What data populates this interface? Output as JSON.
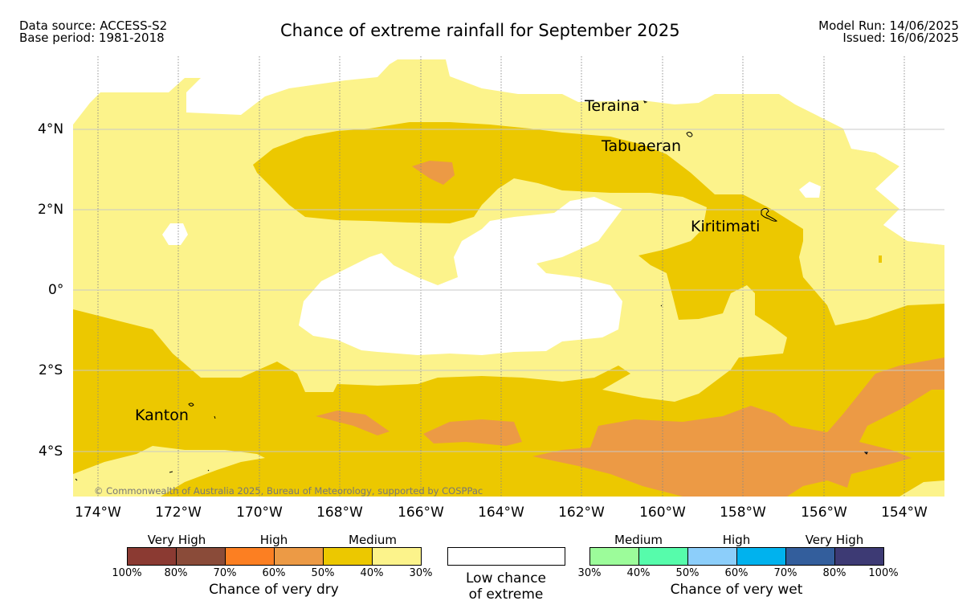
{
  "header": {
    "data_source": "Data source: ACCESS-S2",
    "base_period": "Base period: 1981-2018",
    "title": "Chance of extreme rainfall for September 2025",
    "model_run": "Model Run: 14/06/2025",
    "issued": "Issued: 16/06/2025"
  },
  "map": {
    "lat_labels": [
      "4°N",
      "2°N",
      "0°",
      "2°S",
      "4°S"
    ],
    "lon_labels": [
      "174°W",
      "172°W",
      "170°W",
      "168°W",
      "166°W",
      "164°W",
      "162°W",
      "160°W",
      "158°W",
      "156°W",
      "154°W"
    ],
    "places": {
      "teraina": "Teraina",
      "tabuaeran": "Tabuaeran",
      "kiritimati": "Kiritimati",
      "kanton": "Kanton"
    },
    "copyright": "© Commonwealth of Australia 2025, Bureau of Meteorology, supported by COSPPac",
    "colors": {
      "medium_30_40": "#fcf38b",
      "medium_40_50": "#ecc800",
      "high_50_60": "#ec9a45",
      "low": "#ffffff"
    }
  },
  "legend": {
    "dry": {
      "labels": [
        "Very High",
        "High",
        "Medium"
      ],
      "ticks": [
        "100%",
        "80%",
        "70%",
        "60%",
        "50%",
        "40%",
        "30%"
      ],
      "caption": "Chance of very dry",
      "colors": [
        "#8b3a32",
        "#8a4b39",
        "#fc7f22",
        "#ec9a45",
        "#ecc800",
        "#fcf38b"
      ]
    },
    "low": {
      "caption_line1": "Low chance",
      "caption_line2": "of extreme",
      "color": "#ffffff"
    },
    "wet": {
      "labels": [
        "Medium",
        "High",
        "Very High"
      ],
      "ticks": [
        "30%",
        "40%",
        "50%",
        "60%",
        "70%",
        "80%",
        "100%"
      ],
      "caption": "Chance of very wet",
      "colors": [
        "#9cfc9a",
        "#56fcab",
        "#8ccefa",
        "#00b2ee",
        "#335e9c",
        "#3d3a74"
      ]
    }
  }
}
